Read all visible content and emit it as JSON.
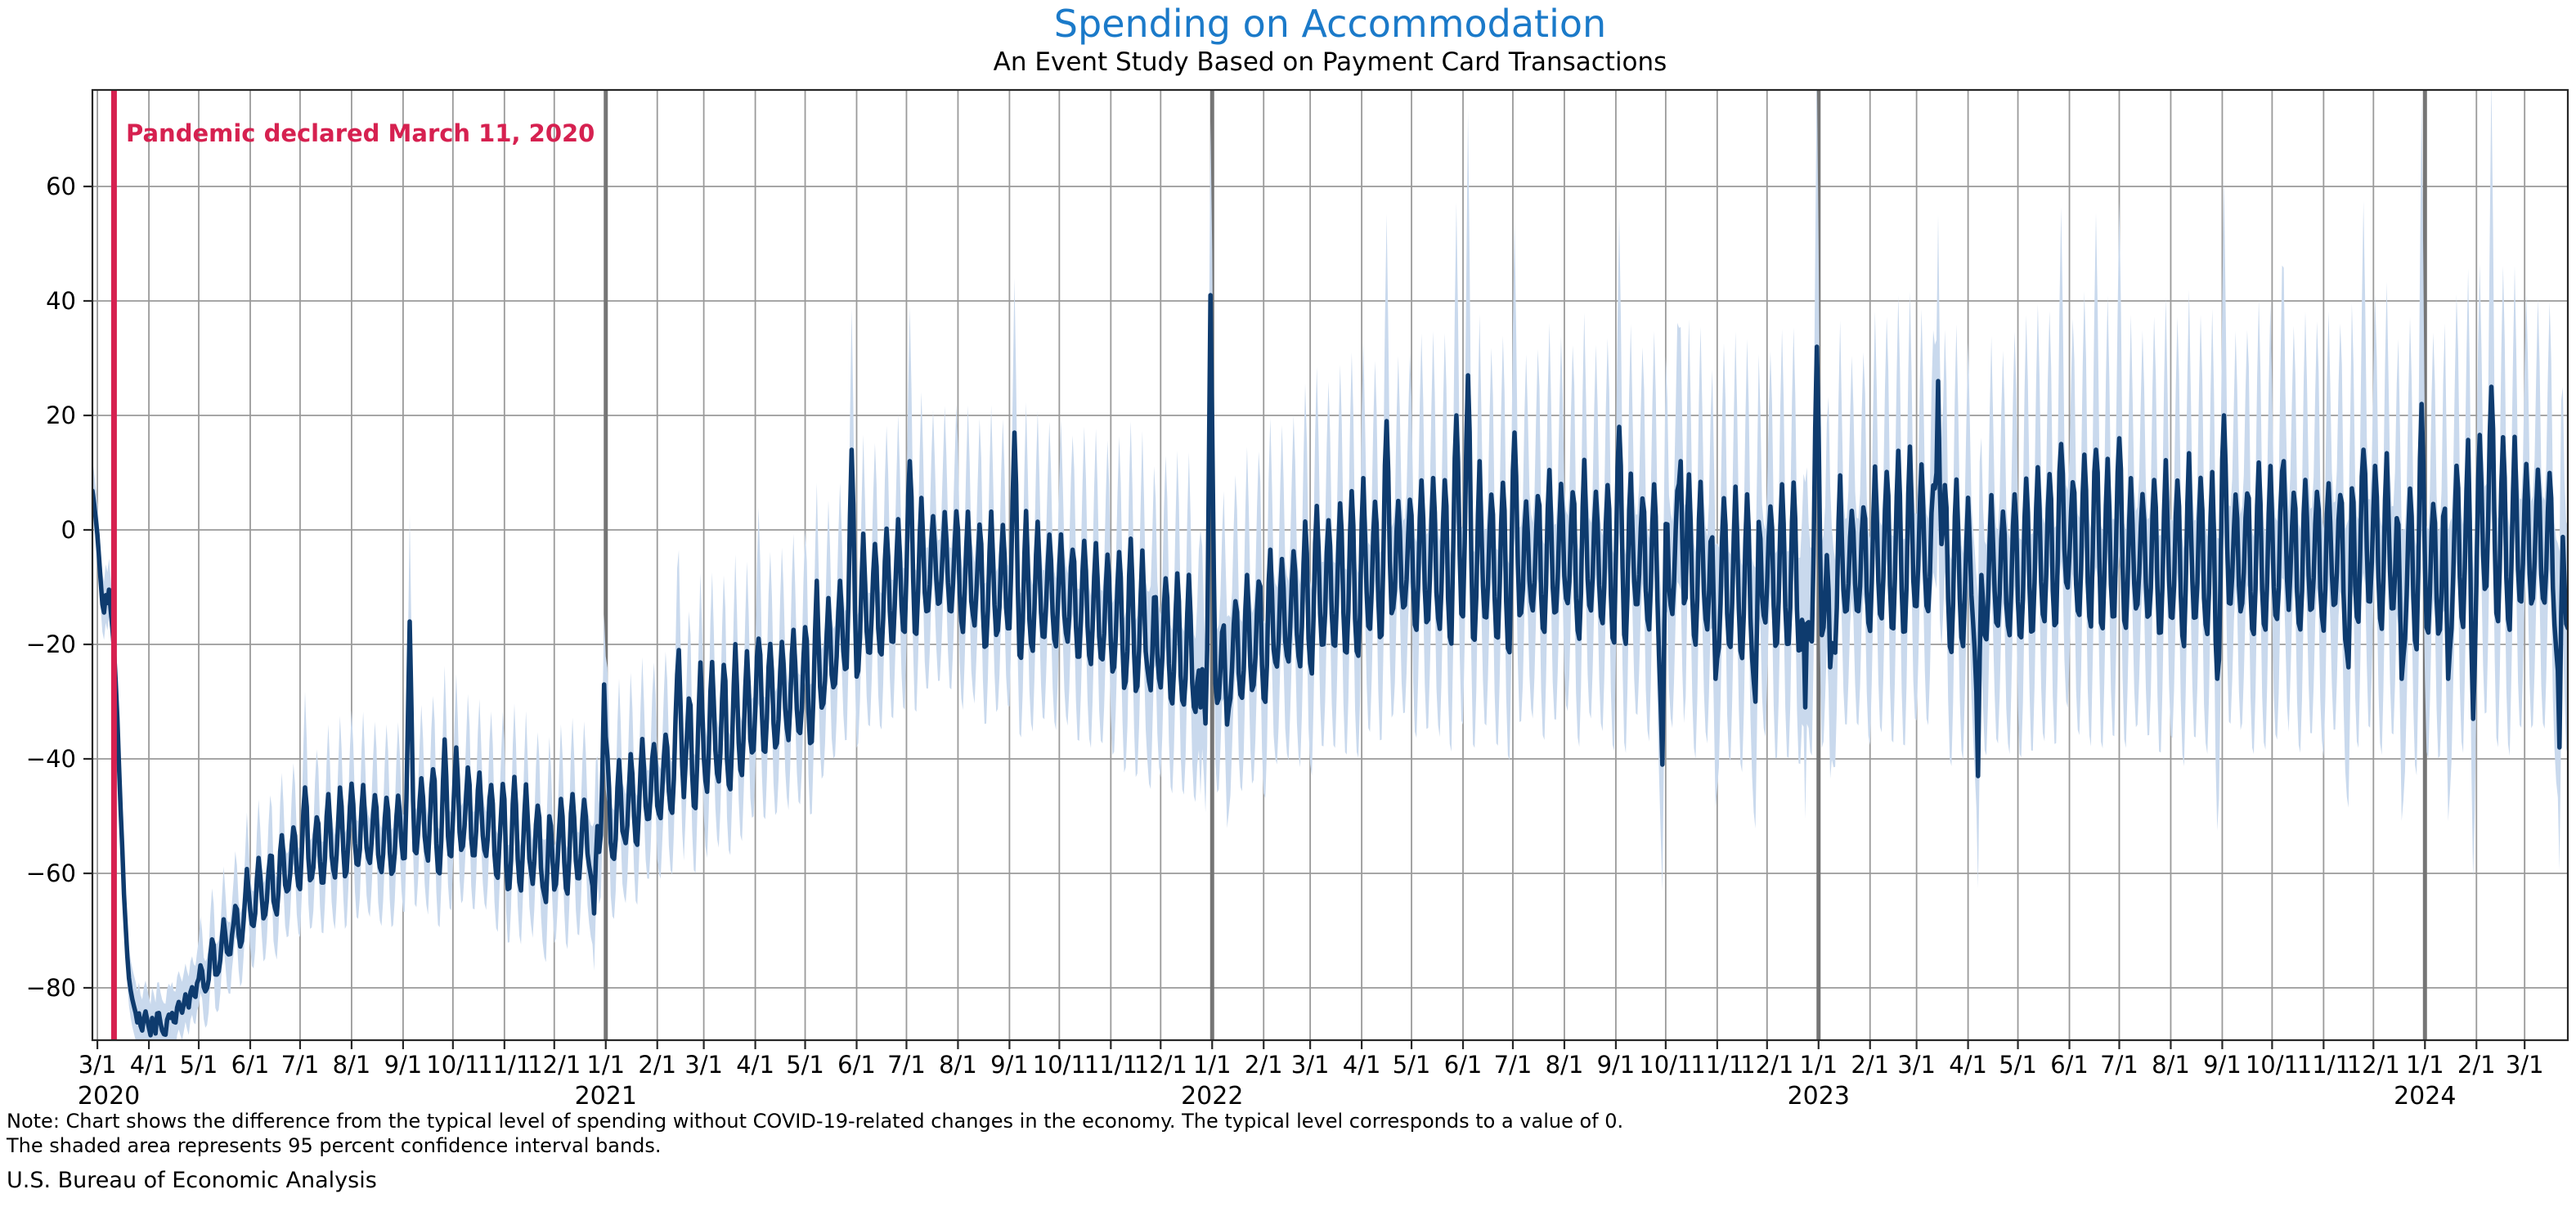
{
  "header": {
    "title": "Spending on Accommodation",
    "subtitle": "An Event Study Based on Payment Card Transactions"
  },
  "annotation": {
    "text": "Pandemic declared March 11, 2020"
  },
  "footer": {
    "note_line1": "Note: Chart shows the difference from the typical level of spending without COVID-19-related changes in the economy. The typical level corresponds to a value of 0.",
    "note_line2": "The shaded area represents 95 percent confidence interval bands.",
    "source": "U.S. Bureau of Economic Analysis"
  },
  "colors": {
    "title_blue": "#1b7ac9",
    "line_navy": "#0e3b6e",
    "band_light_blue": "#c9d9ed",
    "pandemic_crimson": "#d62150",
    "grid_gray": "#9a9a9a",
    "year_grid_gray": "#757575",
    "spine_black": "#262626",
    "text_black": "#000000"
  },
  "chart_data": {
    "type": "line",
    "title": "Spending on Accommodation",
    "subtitle": "An Event Study Based on Payment Card Transactions",
    "xlabel": "",
    "ylabel": "",
    "ylim": [
      -89,
      77
    ],
    "grid": true,
    "legend": "none",
    "band_meaning": "95 percent confidence interval bands",
    "x_start": "2020-02-27",
    "x_end": "2024-03-27",
    "pandemic_line": {
      "date": "2020-03-11",
      "label": "Pandemic declared March 11, 2020"
    },
    "y_ticks": [
      [
        60,
        "60"
      ],
      [
        40,
        "40"
      ],
      [
        20,
        "20"
      ],
      [
        0,
        "0"
      ],
      [
        -20,
        "−20"
      ],
      [
        -40,
        "−40"
      ],
      [
        -60,
        "−60"
      ],
      [
        -80,
        "−80"
      ]
    ],
    "x_ticks": [
      [
        "2020-03-01",
        "3/1"
      ],
      [
        "2020-04-01",
        "4/1"
      ],
      [
        "2020-05-01",
        "5/1"
      ],
      [
        "2020-06-01",
        "6/1"
      ],
      [
        "2020-07-01",
        "7/1"
      ],
      [
        "2020-08-01",
        "8/1"
      ],
      [
        "2020-09-01",
        "9/1"
      ],
      [
        "2020-10-01",
        "10/1"
      ],
      [
        "2020-11-01",
        "11/1"
      ],
      [
        "2020-12-01",
        "12/1"
      ],
      [
        "2021-01-01",
        "1/1"
      ],
      [
        "2021-02-01",
        "2/1"
      ],
      [
        "2021-03-01",
        "3/1"
      ],
      [
        "2021-04-01",
        "4/1"
      ],
      [
        "2021-05-01",
        "5/1"
      ],
      [
        "2021-06-01",
        "6/1"
      ],
      [
        "2021-07-01",
        "7/1"
      ],
      [
        "2021-08-01",
        "8/1"
      ],
      [
        "2021-09-01",
        "9/1"
      ],
      [
        "2021-10-01",
        "10/1"
      ],
      [
        "2021-11-01",
        "11/1"
      ],
      [
        "2021-12-01",
        "12/1"
      ],
      [
        "2022-01-01",
        "1/1"
      ],
      [
        "2022-02-01",
        "2/1"
      ],
      [
        "2022-03-01",
        "3/1"
      ],
      [
        "2022-04-01",
        "4/1"
      ],
      [
        "2022-05-01",
        "5/1"
      ],
      [
        "2022-06-01",
        "6/1"
      ],
      [
        "2022-07-01",
        "7/1"
      ],
      [
        "2022-08-01",
        "8/1"
      ],
      [
        "2022-09-01",
        "9/1"
      ],
      [
        "2022-10-01",
        "10/1"
      ],
      [
        "2022-11-01",
        "11/1"
      ],
      [
        "2022-12-01",
        "12/1"
      ],
      [
        "2023-01-01",
        "1/1"
      ],
      [
        "2023-02-01",
        "2/1"
      ],
      [
        "2023-03-01",
        "3/1"
      ],
      [
        "2023-04-01",
        "4/1"
      ],
      [
        "2023-05-01",
        "5/1"
      ],
      [
        "2023-06-01",
        "6/1"
      ],
      [
        "2023-07-01",
        "7/1"
      ],
      [
        "2023-08-01",
        "8/1"
      ],
      [
        "2023-09-01",
        "9/1"
      ],
      [
        "2023-10-01",
        "10/1"
      ],
      [
        "2023-11-01",
        "11/1"
      ],
      [
        "2023-12-01",
        "12/1"
      ],
      [
        "2024-01-01",
        "1/1"
      ],
      [
        "2024-02-01",
        "2/1"
      ],
      [
        "2024-03-01",
        "3/1"
      ]
    ],
    "year_labels": [
      [
        "2020-03-01",
        "2020"
      ],
      [
        "2021-01-01",
        "2021"
      ],
      [
        "2022-01-01",
        "2022"
      ],
      [
        "2023-01-01",
        "2023"
      ],
      [
        "2024-01-01",
        "2024"
      ]
    ],
    "daily_anchors": {
      "start": "2020-02-27",
      "values": [
        7,
        5,
        2,
        -1,
        -5,
        -9,
        -13,
        -14.5,
        -11.5,
        -12.5,
        -10.5,
        -14,
        -17,
        -21,
        -26,
        -33,
        -41,
        -49,
        -56,
        -63,
        -69,
        -74,
        -78,
        -80.5,
        -82,
        -83,
        -84,
        -85.5,
        -84,
        -86.5,
        -87.5,
        -85,
        -84,
        -85.5,
        -87,
        -88.2,
        -85,
        -86,
        -87.5,
        -84.5,
        -84,
        -86,
        -87,
        -88,
        -87.5,
        -85,
        -84,
        -84.5,
        -83.5,
        -85,
        -85.8,
        -83,
        -81.5,
        -82.5,
        -83.5,
        -82,
        -80.5,
        -81.5,
        -82.5,
        -80,
        -79.5,
        -80.5,
        -81,
        -78.5
      ]
    },
    "monthly_envelope_date_mid_amp_ci": [
      [
        "2020-05-01",
        -77.5,
        3,
        6
      ],
      [
        "2020-06-01",
        -64,
        4.5,
        7
      ],
      [
        "2020-07-01",
        -56,
        6,
        8
      ],
      [
        "2020-08-01",
        -50,
        7,
        9
      ],
      [
        "2020-09-01",
        -52,
        7,
        9
      ],
      [
        "2020-10-01",
        -47,
        8.5,
        9
      ],
      [
        "2020-11-01",
        -54,
        7.5,
        9
      ],
      [
        "2020-12-01",
        -57,
        6.5,
        9
      ],
      [
        "2021-01-01",
        -53,
        7,
        10
      ],
      [
        "2021-02-01",
        -45,
        8.5,
        10
      ],
      [
        "2021-03-01",
        -37,
        10,
        11
      ],
      [
        "2021-04-01",
        -31,
        10.5,
        11
      ],
      [
        "2021-05-01",
        -27,
        11,
        12
      ],
      [
        "2021-06-01",
        -14,
        11,
        12
      ],
      [
        "2021-07-01",
        -7,
        11,
        13
      ],
      [
        "2021-08-01",
        -5,
        10,
        13
      ],
      [
        "2021-09-01",
        -9,
        11,
        13
      ],
      [
        "2021-10-01",
        -11,
        10.5,
        14
      ],
      [
        "2021-11-01",
        -14,
        10.5,
        14
      ],
      [
        "2021-12-01",
        -17,
        9.5,
        15
      ],
      [
        "2022-01-01",
        -22,
        9.5,
        15
      ],
      [
        "2022-02-01",
        -16,
        10.5,
        16
      ],
      [
        "2022-03-01",
        -9,
        11.5,
        17
      ],
      [
        "2022-04-01",
        -5,
        12,
        17
      ],
      [
        "2022-05-01",
        -4,
        12,
        18
      ],
      [
        "2022-06-01",
        -3,
        12.5,
        18
      ],
      [
        "2022-07-01",
        -6,
        12,
        18
      ],
      [
        "2022-08-01",
        -4,
        12,
        18
      ],
      [
        "2022-09-01",
        -6,
        12.5,
        18
      ],
      [
        "2022-10-01",
        -6,
        12,
        19
      ],
      [
        "2022-11-01",
        -8,
        12,
        19
      ],
      [
        "2022-12-01",
        -7,
        12,
        19
      ],
      [
        "2023-01-01",
        -6,
        12,
        19
      ],
      [
        "2023-02-01",
        -3,
        12,
        19
      ],
      [
        "2023-03-01",
        -1,
        13,
        19
      ],
      [
        "2023-04-01",
        -7,
        12,
        19
      ],
      [
        "2023-05-01",
        -4,
        12,
        20
      ],
      [
        "2023-06-01",
        0,
        12.5,
        20
      ],
      [
        "2023-07-01",
        -2,
        12,
        20
      ],
      [
        "2023-08-01",
        -3,
        12,
        20
      ],
      [
        "2023-09-01",
        -4,
        13,
        20
      ],
      [
        "2023-10-01",
        -4,
        12,
        20
      ],
      [
        "2023-11-01",
        -6,
        12,
        21
      ],
      [
        "2023-12-01",
        -3,
        12.5,
        21
      ],
      [
        "2024-01-01",
        -9,
        13,
        21
      ],
      [
        "2024-02-01",
        0,
        13,
        21
      ],
      [
        "2024-03-01",
        -3,
        13,
        21
      ],
      [
        "2024-03-27",
        -4,
        13,
        21
      ]
    ],
    "weekly_pattern_sun_to_sat": [
      0.55,
      -0.5,
      -0.95,
      -1.0,
      -0.45,
      0.5,
      1.05
    ],
    "holiday_events_date_value": [
      [
        "2020-07-04",
        -45
      ],
      [
        "2020-09-05",
        -16
      ],
      [
        "2020-11-26",
        -65
      ],
      [
        "2020-12-25",
        -67
      ],
      [
        "2020-12-31",
        -27
      ],
      [
        "2021-02-14",
        -21
      ],
      [
        "2021-04-03",
        -19
      ],
      [
        "2021-05-29",
        14
      ],
      [
        "2021-07-03",
        12
      ],
      [
        "2021-09-04",
        17
      ],
      [
        "2021-11-25",
        -28
      ],
      [
        "2021-12-25",
        -31
      ],
      [
        "2021-12-31",
        41
      ],
      [
        "2022-01-10",
        -34
      ],
      [
        "2022-04-16",
        19
      ],
      [
        "2022-05-28",
        20
      ],
      [
        "2022-06-04",
        27
      ],
      [
        "2022-07-02",
        17
      ],
      [
        "2022-09-03",
        18
      ],
      [
        "2022-09-29",
        -41
      ],
      [
        "2022-10-10",
        12
      ],
      [
        "2022-10-31",
        -26
      ],
      [
        "2022-11-24",
        -30
      ],
      [
        "2022-12-24",
        -31
      ],
      [
        "2022-12-31",
        32
      ],
      [
        "2023-01-08",
        -24
      ],
      [
        "2023-03-14",
        26
      ],
      [
        "2023-04-07",
        -43
      ],
      [
        "2023-05-27",
        15
      ],
      [
        "2023-06-17",
        14
      ],
      [
        "2023-07-01",
        16
      ],
      [
        "2023-08-29",
        -26
      ],
      [
        "2023-09-02",
        20
      ],
      [
        "2023-10-08",
        12
      ],
      [
        "2023-11-16",
        -24
      ],
      [
        "2023-11-25",
        14
      ],
      [
        "2023-12-18",
        -26
      ],
      [
        "2023-12-30",
        22
      ],
      [
        "2024-01-15",
        -26
      ],
      [
        "2024-01-30",
        -33
      ],
      [
        "2024-02-10",
        25
      ],
      [
        "2024-03-22",
        -38
      ]
    ]
  }
}
